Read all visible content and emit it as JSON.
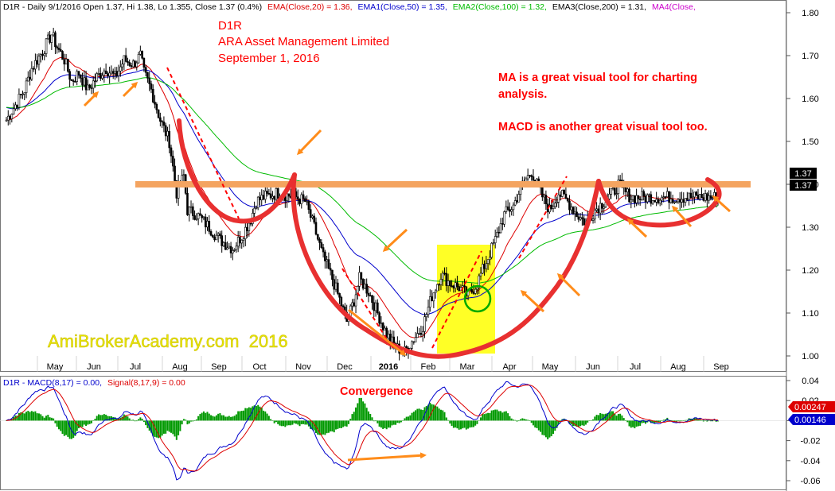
{
  "chart_data": [
    {
      "type": "candlestick",
      "symbol": "D1R",
      "header": {
        "main": "D1R - Daily 9/1/2016 Open 1.37, Hi 1.38, Lo 1.355, Close 1.37 (0.4%)",
        "ema20": "EMA(Close,20) = 1.36,",
        "ema50": "EMA1(Close,50) = 1.35,",
        "ema100": "EMA2(Close,100) = 1.32,",
        "ema200": "EMA3(Close,200) = 1.31,",
        "ma4": "MA4(Close,"
      },
      "title_lines": [
        "D1R",
        "ARA Asset Management Limited",
        "September 1, 2016"
      ],
      "annotations": [
        "MA is a great visual tool for charting",
        "analysis.",
        "MACD is another great visual tool too."
      ],
      "watermark": "AmiBrokerAcademy.com  2016",
      "y_ticks": [
        "1.80",
        "1.70",
        "1.60",
        "1.50",
        "1.40",
        "1.30",
        "1.20",
        "1.10",
        "1.00"
      ],
      "ylim": [
        0.97,
        1.84
      ],
      "x_ticks": [
        "May",
        "Jun",
        "Jul",
        "Aug",
        "Sep",
        "Oct",
        "Nov",
        "Dec",
        "2016",
        "Feb",
        "Mar",
        "Apr",
        "May",
        "Jun",
        "Jul",
        "Aug",
        "Sep"
      ],
      "price_labels": [
        "1.37",
        "1.37"
      ],
      "resistance_level": 1.4,
      "close_keypoints": {
        "t": [
          0,
          10,
          14,
          20,
          25,
          28,
          32,
          36,
          40,
          45,
          50,
          55,
          60,
          65,
          70,
          74,
          76,
          80,
          85,
          90,
          94,
          98,
          100,
          105,
          112,
          118,
          125,
          130,
          135,
          138,
          142,
          150,
          160,
          165,
          170,
          175,
          180,
          185,
          188,
          192,
          195,
          200,
          205,
          210,
          215,
          220,
          225,
          230,
          235,
          240,
          245,
          250,
          255,
          260,
          265,
          270,
          275,
          280,
          285,
          290,
          295,
          300,
          305,
          310,
          315,
          320,
          325,
          330,
          335,
          338,
          342,
          345,
          350,
          355,
          360,
          365,
          370,
          375,
          380,
          385,
          393
        ],
        "v": [
          1.55,
          1.62,
          1.67,
          1.71,
          1.75,
          1.72,
          1.69,
          1.64,
          1.66,
          1.62,
          1.65,
          1.67,
          1.65,
          1.69,
          1.68,
          1.7,
          1.66,
          1.62,
          1.55,
          1.5,
          1.38,
          1.42,
          1.34,
          1.33,
          1.3,
          1.27,
          1.25,
          1.28,
          1.32,
          1.36,
          1.37,
          1.38,
          1.37,
          1.36,
          1.3,
          1.23,
          1.18,
          1.12,
          1.08,
          1.13,
          1.18,
          1.15,
          1.1,
          1.05,
          1.02,
          1.01,
          1.04,
          1.07,
          1.14,
          1.19,
          1.17,
          1.16,
          1.14,
          1.17,
          1.22,
          1.27,
          1.33,
          1.35,
          1.4,
          1.43,
          1.38,
          1.34,
          1.38,
          1.36,
          1.33,
          1.31,
          1.34,
          1.36,
          1.38,
          1.4,
          1.38,
          1.37,
          1.37,
          1.37,
          1.37,
          1.37,
          1.37,
          1.37,
          1.37,
          1.37,
          1.37
        ]
      }
    },
    {
      "type": "macd",
      "header": {
        "macd": "D1R - MACD(8,17) = 0.00,",
        "signal": "Signal(8,17,9) = 0.00"
      },
      "annotation": "Convergence",
      "y_ticks": [
        "0.04",
        "0.02",
        "0.00",
        "-0.02",
        "-0.04",
        "-0.06"
      ],
      "ylim": [
        -0.066,
        0.047
      ],
      "value_labels": [
        "0.00247",
        "0.00146"
      ]
    }
  ],
  "colors": {
    "candles": "#000000",
    "ema20": "#dd0000",
    "ema50": "#0000cc",
    "ema100": "#00bb00",
    "ema200": "#008800",
    "ma4": "#cc00cc",
    "annotation_red": "#ff0000",
    "highlight_orange": "#ff8c1a",
    "resistance": "#f4a460",
    "marker_red": "#e83030",
    "watermark": "#e8e800",
    "highlight_yellow": "#ffff00",
    "macd_blue": "#0000cc",
    "signal_red": "#dd0000",
    "histogram": "#009900"
  }
}
